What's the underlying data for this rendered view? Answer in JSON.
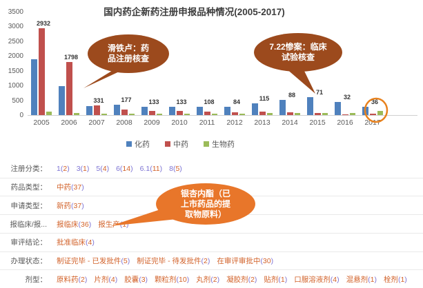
{
  "chart_data": {
    "type": "bar",
    "title": "国内药企新药注册申报品种情况(2005-2017)",
    "categories": [
      "2005",
      "2006",
      "2007",
      "2008",
      "2009",
      "2010",
      "2011",
      "2012",
      "2013",
      "2014",
      "2015",
      "2016",
      "2017"
    ],
    "series": [
      {
        "id": "chem",
        "name": "化药",
        "color": "#4f81bd",
        "values": [
          1900,
          980,
          300,
          350,
          290,
          270,
          290,
          290,
          400,
          510,
          600,
          440,
          280
        ]
      },
      {
        "id": "tcm",
        "name": "中药",
        "color": "#c0504d",
        "data_labels": true,
        "values": [
          2932,
          1798,
          331,
          177,
          133,
          133,
          108,
          84,
          115,
          88,
          71,
          32,
          36
        ]
      },
      {
        "id": "bio",
        "name": "生物药",
        "color": "#9bbb59",
        "values": [
          120,
          80,
          35,
          45,
          45,
          35,
          35,
          35,
          60,
          60,
          70,
          80,
          130
        ]
      }
    ],
    "ylim": [
      0,
      3500
    ],
    "yticks": [
      0,
      500,
      1000,
      1500,
      2000,
      2500,
      3000,
      3500
    ],
    "legend_position": "bottom",
    "grid": false,
    "highlight": {
      "category": "2017",
      "series": "中药",
      "value": 36,
      "marker": "orange-circle"
    }
  },
  "annotations": [
    {
      "text": "滑铁卢：药品注册核查"
    },
    {
      "text": "7.22惨案：临床试验核查"
    },
    {
      "text": "银杏内酯（已上市药品的提取物原料）"
    }
  ],
  "facets": {
    "rows": [
      {
        "label": "注册分类：",
        "style": "num",
        "items": [
          [
            "1",
            "2"
          ],
          [
            "3",
            "1"
          ],
          [
            "5",
            "4"
          ],
          [
            "6",
            "14"
          ],
          [
            "6.1",
            "11"
          ],
          [
            "8",
            "5"
          ]
        ]
      },
      {
        "label": "药品类型：",
        "items": [
          [
            "中药",
            "37"
          ]
        ]
      },
      {
        "label": "申请类型：",
        "items": [
          [
            "新药",
            "37"
          ]
        ]
      },
      {
        "label": "报临床/报...",
        "items": [
          [
            "报临床",
            "36"
          ],
          [
            "报生产",
            "1"
          ]
        ]
      },
      {
        "label": "审评结论：",
        "items": [
          [
            "批准临床",
            "4"
          ]
        ]
      },
      {
        "label": "办理状态：",
        "items": [
          [
            "制证完毕 - 已发批件",
            "5"
          ],
          [
            "制证完毕 - 待发批件",
            "2"
          ],
          [
            "在审评审批中",
            "30"
          ]
        ]
      },
      {
        "label": "剂型：",
        "items": [
          [
            "原料药",
            "2"
          ],
          [
            "片剂",
            "4"
          ],
          [
            "胶囊",
            "3"
          ],
          [
            "颗粒剂",
            "10"
          ],
          [
            "丸剂",
            "2"
          ],
          [
            "凝胶剂",
            "2"
          ],
          [
            "贴剂",
            "1"
          ],
          [
            "口服溶液剂",
            "4"
          ],
          [
            "混悬剂",
            "1"
          ],
          [
            "栓剂",
            "1"
          ]
        ]
      }
    ]
  },
  "colors": {
    "bubble_brown": "#9c4a1d",
    "bubble_orange": "#e8762a",
    "circle_orange": "#e8821e",
    "link_purple": "#7e74d4",
    "link_orange": "#d2622a",
    "axis_gray": "#595959"
  }
}
